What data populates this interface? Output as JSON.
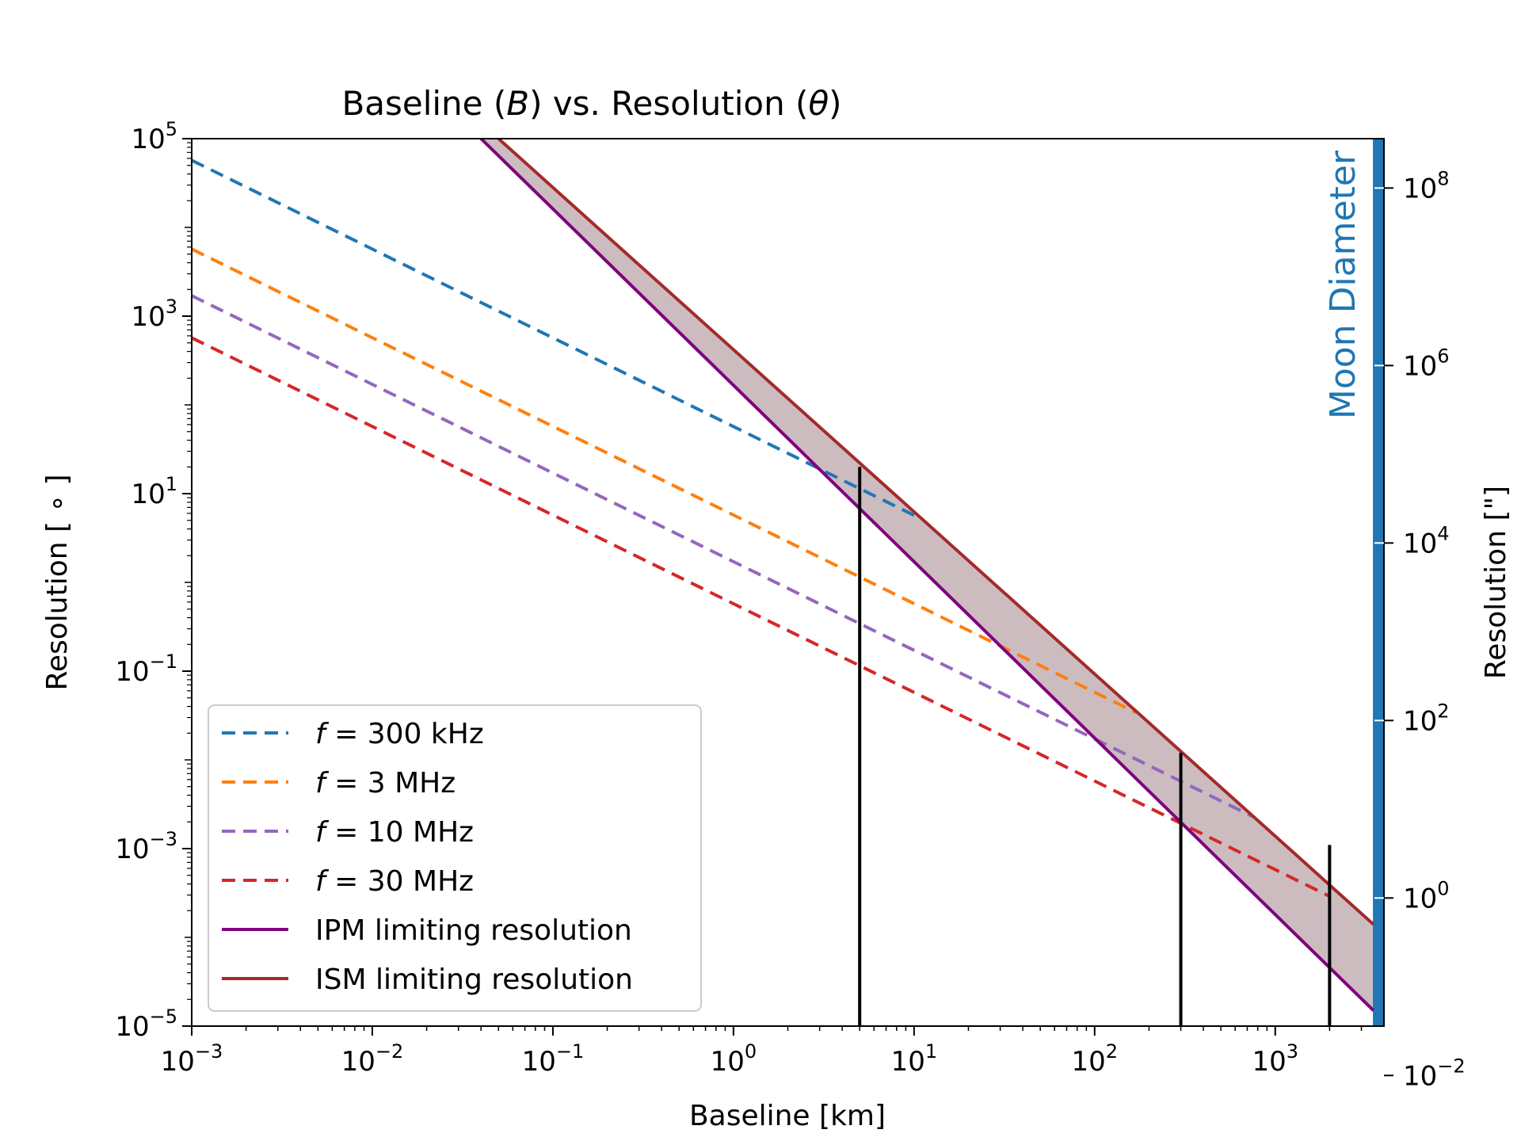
{
  "chart_data": {
    "type": "line",
    "title": "Baseline (B) vs. Resolution (θ)",
    "title_parts": {
      "pre": "Baseline (",
      "b": "B",
      "mid": ") vs. Resolution (",
      "theta": "θ",
      "post": ")"
    },
    "xlabel": "Baseline [km]",
    "ylabel": "Resolution [ ∘ ]",
    "y2label": "Resolution [\"]",
    "xscale": "log",
    "yscale": "log",
    "xlim": [
      0.001,
      4000
    ],
    "ylim": [
      1e-05,
      100000
    ],
    "y2lim": [
      0.036,
      360000000
    ],
    "x_ticks": [
      {
        "value": 0.001,
        "base": "10",
        "exp": "−3"
      },
      {
        "value": 0.01,
        "base": "10",
        "exp": "−2"
      },
      {
        "value": 0.1,
        "base": "10",
        "exp": "−1"
      },
      {
        "value": 1,
        "base": "10",
        "exp": "0"
      },
      {
        "value": 10,
        "base": "10",
        "exp": "1"
      },
      {
        "value": 100,
        "base": "10",
        "exp": "2"
      },
      {
        "value": 1000,
        "base": "10",
        "exp": "3"
      }
    ],
    "y_ticks": [
      {
        "value": 1e-05,
        "base": "10",
        "exp": "−5"
      },
      {
        "value": 0.001,
        "base": "10",
        "exp": "−3"
      },
      {
        "value": 0.1,
        "base": "10",
        "exp": "−1"
      },
      {
        "value": 10,
        "base": "10",
        "exp": "1"
      },
      {
        "value": 1000,
        "base": "10",
        "exp": "3"
      },
      {
        "value": 100000,
        "base": "10",
        "exp": "5"
      }
    ],
    "y2_ticks": [
      {
        "value": 0.01,
        "base": "10",
        "exp": "−2"
      },
      {
        "value": 1,
        "base": "10",
        "exp": "0"
      },
      {
        "value": 100,
        "base": "10",
        "exp": "2"
      },
      {
        "value": 10000,
        "base": "10",
        "exp": "4"
      },
      {
        "value": 1000000,
        "base": "10",
        "exp": "6"
      },
      {
        "value": 100000000,
        "base": "10",
        "exp": "8"
      }
    ],
    "series": [
      {
        "name": "f = 300 kHz",
        "legend": {
          "f": "f",
          "eq": " = ",
          "rest": "300 kHz"
        },
        "style": "dashed",
        "color": "#1f77b4",
        "x": [
          0.001,
          10
        ],
        "y": [
          57000,
          5.7
        ]
      },
      {
        "name": "f = 3 MHz",
        "legend": {
          "f": "f",
          "eq": " = ",
          "rest": "3 MHz"
        },
        "style": "dashed",
        "color": "#ff7f0e",
        "x": [
          0.001,
          170
        ],
        "y": [
          5700,
          0.034
        ]
      },
      {
        "name": "f = 10 MHz",
        "legend": {
          "f": "f",
          "eq": " = ",
          "rest": "10 MHz"
        },
        "style": "dashed",
        "color": "#9467bd",
        "x": [
          0.001,
          750
        ],
        "y": [
          1700,
          0.0023
        ]
      },
      {
        "name": "f = 30 MHz",
        "legend": {
          "f": "f",
          "eq": " = ",
          "rest": "30 MHz"
        },
        "style": "dashed",
        "color": "#d62728",
        "x": [
          0.001,
          2000
        ],
        "y": [
          570,
          0.00029
        ]
      },
      {
        "name": "IPM limiting resolution",
        "legend": {
          "text": "IPM limiting resolution"
        },
        "style": "solid",
        "color": "#800080",
        "x": [
          0.04,
          3500
        ],
        "y": [
          100000,
          1.5e-05
        ]
      },
      {
        "name": "ISM limiting resolution",
        "legend": {
          "text": "ISM limiting resolution"
        },
        "style": "solid",
        "color": "#a52a2a",
        "x": [
          0.05,
          3500
        ],
        "y": [
          100000,
          0.00014
        ]
      }
    ],
    "band_fill": "#c6b5b9",
    "vertical_markers": [
      {
        "x": 5,
        "y_top": 20
      },
      {
        "x": 300,
        "y_top": 0.012
      },
      {
        "x": 2000,
        "y_top": 0.0011
      }
    ],
    "moon_bar": {
      "label": "Moon Diameter",
      "x_start": 3475,
      "x_end": 4000,
      "color": "#1f77b4"
    },
    "legend_position": "lower-left",
    "grid": false
  }
}
